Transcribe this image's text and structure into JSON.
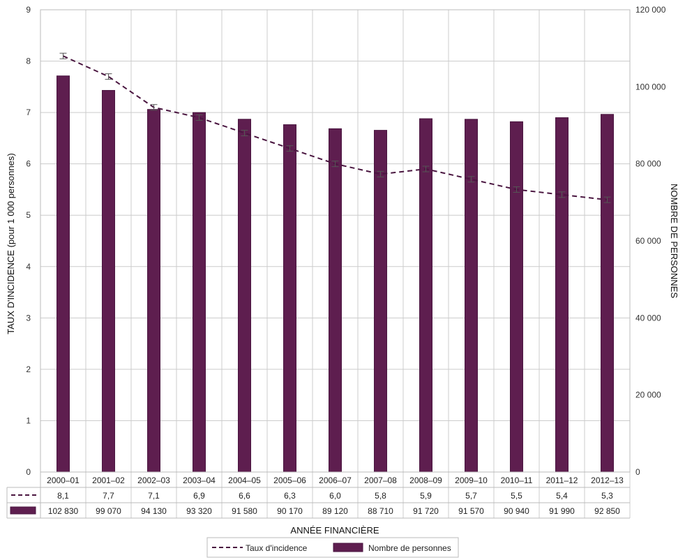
{
  "chart_data": {
    "type": "bar",
    "categories": [
      "2000–01",
      "2001–02",
      "2002–03",
      "2003–04",
      "2004–05",
      "2005–06",
      "2006–07",
      "2007–08",
      "2008–09",
      "2009–10",
      "2010–11",
      "2011–12",
      "2012–13"
    ],
    "series": [
      {
        "name": "Nombre de personnes",
        "type": "bar",
        "axis": "right",
        "values": [
          102830,
          99070,
          94130,
          93320,
          91580,
          90170,
          89120,
          88710,
          91720,
          91570,
          90940,
          91990,
          92850
        ],
        "labels": [
          "102 830",
          "99 070",
          "94 130",
          "93 320",
          "91 580",
          "90 170",
          "89 120",
          "88 710",
          "91 720",
          "91 570",
          "90 940",
          "91 990",
          "92 850"
        ]
      },
      {
        "name": "Taux d'incidence",
        "type": "line",
        "style": "dashed",
        "axis": "left",
        "values": [
          8.1,
          7.7,
          7.1,
          6.9,
          6.6,
          6.3,
          6.0,
          5.8,
          5.9,
          5.7,
          5.5,
          5.4,
          5.3
        ],
        "labels": [
          "8,1",
          "7,7",
          "7,1",
          "6,9",
          "6,6",
          "6,3",
          "6,0",
          "5,8",
          "5,9",
          "5,7",
          "5,5",
          "5,4",
          "5,3"
        ],
        "error_bars": true
      }
    ],
    "xlabel": "ANNÉE FINANCIÈRE",
    "ylabel_left": "TAUX D'INCIDENCE (pour 1 000 personnes)",
    "ylabel_right": "NOMBRE DE PERSONNES",
    "ylim_left": [
      0,
      9
    ],
    "ylim_right": [
      0,
      120000
    ],
    "yticks_left": [
      "0",
      "1",
      "2",
      "3",
      "4",
      "5",
      "6",
      "7",
      "8",
      "9"
    ],
    "yticks_right": [
      "0",
      "20 000",
      "40 000",
      "60 000",
      "80 000",
      "100 000",
      "120 000"
    ],
    "grid": true,
    "legend_position": "bottom-center",
    "legend": [
      "Taux d'incidence",
      "Nombre de personnes"
    ],
    "colors": {
      "bar": "#5e1e4f",
      "bar_border": "#4a1640",
      "line": "#4a1640",
      "grid": "#cccccc"
    }
  }
}
